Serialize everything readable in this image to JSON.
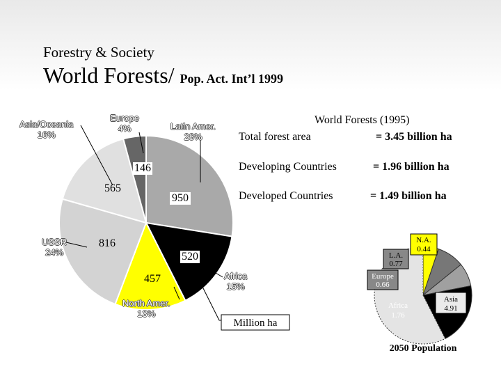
{
  "slide": {
    "subtitle": "Forestry & Society",
    "title": "World Forests/",
    "title_suffix": "Pop. Act. Int’l 1999"
  },
  "stats": {
    "title": "World Forests (1995)",
    "rows": [
      {
        "label": "Total forest area",
        "value": "= 3.45 billion ha"
      },
      {
        "label": "Developing Countries",
        "value": "= 1.96 billion ha"
      },
      {
        "label": "Developed Countries",
        "value": "= 1.49 billion ha"
      }
    ]
  },
  "colors": {
    "latin": "#a9a9a9",
    "africa": "#000000",
    "north_america": "#ffff00",
    "ussr": "#d3d3d3",
    "asia": "#e0e0e0",
    "europe": "#666666",
    "na2050": "#ffff00",
    "la2050": "#777777",
    "europe2050": "#a0a0a0",
    "africa2050": "#000000",
    "asia2050": "#e4e4e4"
  },
  "chart_data": [
    {
      "type": "pie",
      "unit_note": "Million ha",
      "slices": [
        {
          "label": "Latin Amer.",
          "pct": "28%",
          "value": 950
        },
        {
          "label": "Africa",
          "pct": "15%",
          "value": 520
        },
        {
          "label": "North Amer.",
          "pct": "13%",
          "value": 457
        },
        {
          "label": "USSR",
          "pct": "24%",
          "value": 816
        },
        {
          "label": "Asia/Oceania",
          "pct": "16%",
          "value": 565
        },
        {
          "label": "Europe",
          "pct": "4%",
          "value": 146
        }
      ]
    },
    {
      "type": "pie",
      "title": "2050 Population",
      "slices": [
        {
          "label": "N.A.",
          "value": 0.44
        },
        {
          "label": "L.A.",
          "value": 0.77
        },
        {
          "label": "Europe",
          "value": 0.66
        },
        {
          "label": "Africa",
          "value": 1.76
        },
        {
          "label": "Asia",
          "value": 4.91
        }
      ]
    }
  ]
}
